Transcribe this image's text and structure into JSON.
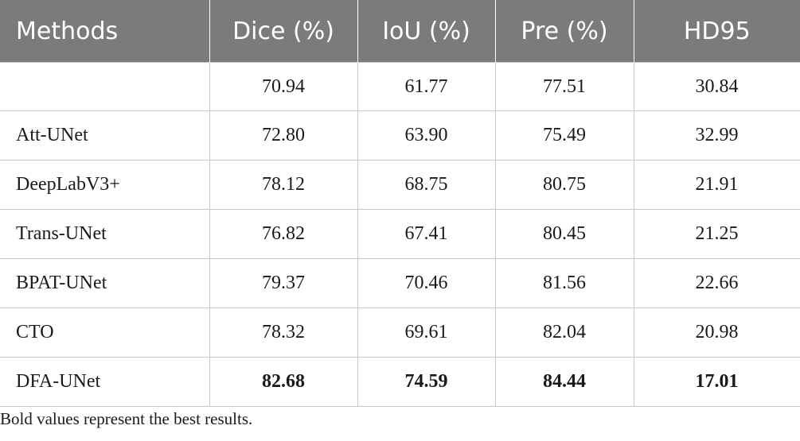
{
  "table": {
    "headers": [
      "Methods",
      "Dice (%)",
      "IoU (%)",
      "Pre (%)",
      "HD95"
    ],
    "rows": [
      {
        "method": "",
        "dice": "70.94",
        "iou": "61.77",
        "pre": "77.51",
        "hd95": "30.84"
      },
      {
        "method": "Att-UNet",
        "dice": "72.80",
        "iou": "63.90",
        "pre": "75.49",
        "hd95": "32.99"
      },
      {
        "method": "DeepLabV3+",
        "dice": "78.12",
        "iou": "68.75",
        "pre": "80.75",
        "hd95": "21.91"
      },
      {
        "method": "Trans-UNet",
        "dice": "76.82",
        "iou": "67.41",
        "pre": "80.45",
        "hd95": "21.25"
      },
      {
        "method": "BPAT-UNet",
        "dice": "79.37",
        "iou": "70.46",
        "pre": "81.56",
        "hd95": "22.66"
      },
      {
        "method": "CTO",
        "dice": "78.32",
        "iou": "69.61",
        "pre": "82.04",
        "hd95": "20.98"
      },
      {
        "method": "DFA-UNet",
        "dice": "82.68",
        "iou": "74.59",
        "pre": "84.44",
        "hd95": "17.01"
      }
    ],
    "best_row_method": "DFA-UNet"
  },
  "footnote": "Bold values represent the best results.",
  "colors": {
    "header_bg": "#7b7b7b",
    "header_text": "#ffffff",
    "grid_line": "#c8c8c8"
  }
}
